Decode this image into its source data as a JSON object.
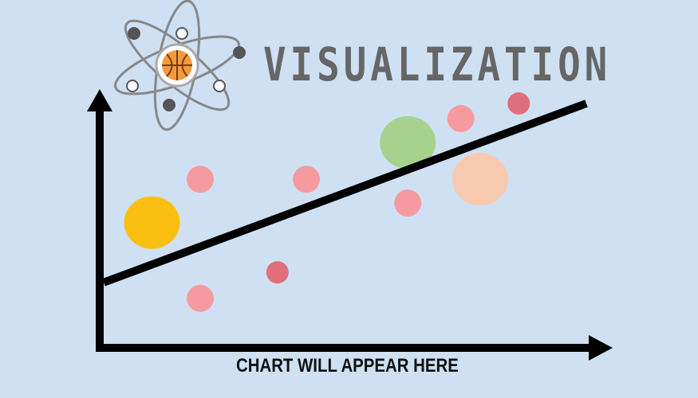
{
  "title": "VISUALIZATION",
  "caption": "CHART WILL APPEAR HERE",
  "logo": {
    "icon": "atom-basketball-icon",
    "orbit_color": "#888888",
    "ball_color": "#f39a3a"
  },
  "colors": {
    "background": "#cfe0f3",
    "axis": "#000000",
    "title": "#666666",
    "caption": "#111111"
  },
  "chart_data": {
    "type": "scatter",
    "trend_line": {
      "x": [
        0,
        100
      ],
      "y": [
        10,
        100
      ]
    },
    "points": [
      {
        "x": 10,
        "y": 45,
        "size": 3,
        "color": "#fbbf11"
      },
      {
        "x": 20,
        "y": 65,
        "size": 1,
        "color": "#f59b9f"
      },
      {
        "x": 20,
        "y": 10,
        "size": 1,
        "color": "#f59b9f"
      },
      {
        "x": 36,
        "y": 22,
        "size": 0.7,
        "color": "#df6f7b"
      },
      {
        "x": 42,
        "y": 65,
        "size": 1,
        "color": "#f59b9f"
      },
      {
        "x": 63,
        "y": 54,
        "size": 1,
        "color": "#f59b9f"
      },
      {
        "x": 63,
        "y": 82,
        "size": 3,
        "color": "#a6d28e"
      },
      {
        "x": 74,
        "y": 93,
        "size": 1,
        "color": "#f59b9f"
      },
      {
        "x": 78,
        "y": 65,
        "size": 3,
        "color": "#f7cab0"
      },
      {
        "x": 86,
        "y": 100,
        "size": 0.7,
        "color": "#df6f7b"
      }
    ]
  }
}
